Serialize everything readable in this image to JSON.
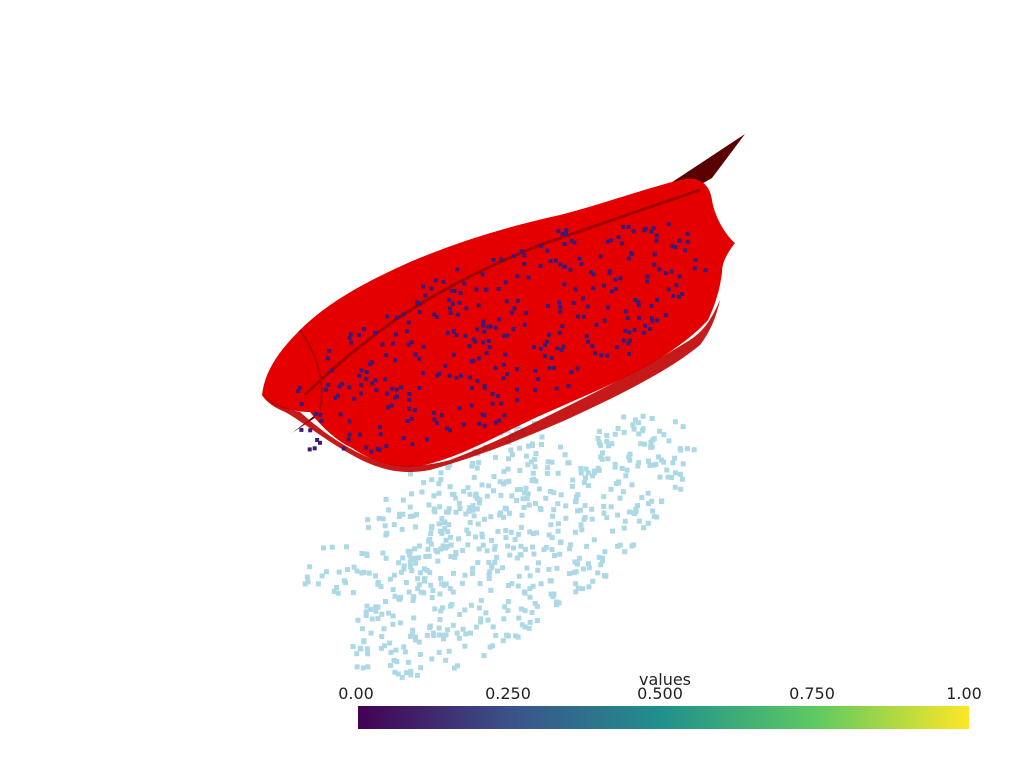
{
  "colorbar": {
    "title": "values",
    "ticks": [
      "0.00",
      "0.250",
      "0.500",
      "0.750",
      "1.00"
    ],
    "range": [
      0,
      1
    ],
    "colormap": "viridis",
    "colors": [
      "#440154",
      "#3b528b",
      "#21918c",
      "#5ec962",
      "#fde725"
    ]
  },
  "scene": {
    "surface_color": "#e50000",
    "plane_color": "#5a0000",
    "surface_points_color": "#3b1a78",
    "projected_points_color": "#add8e6"
  }
}
